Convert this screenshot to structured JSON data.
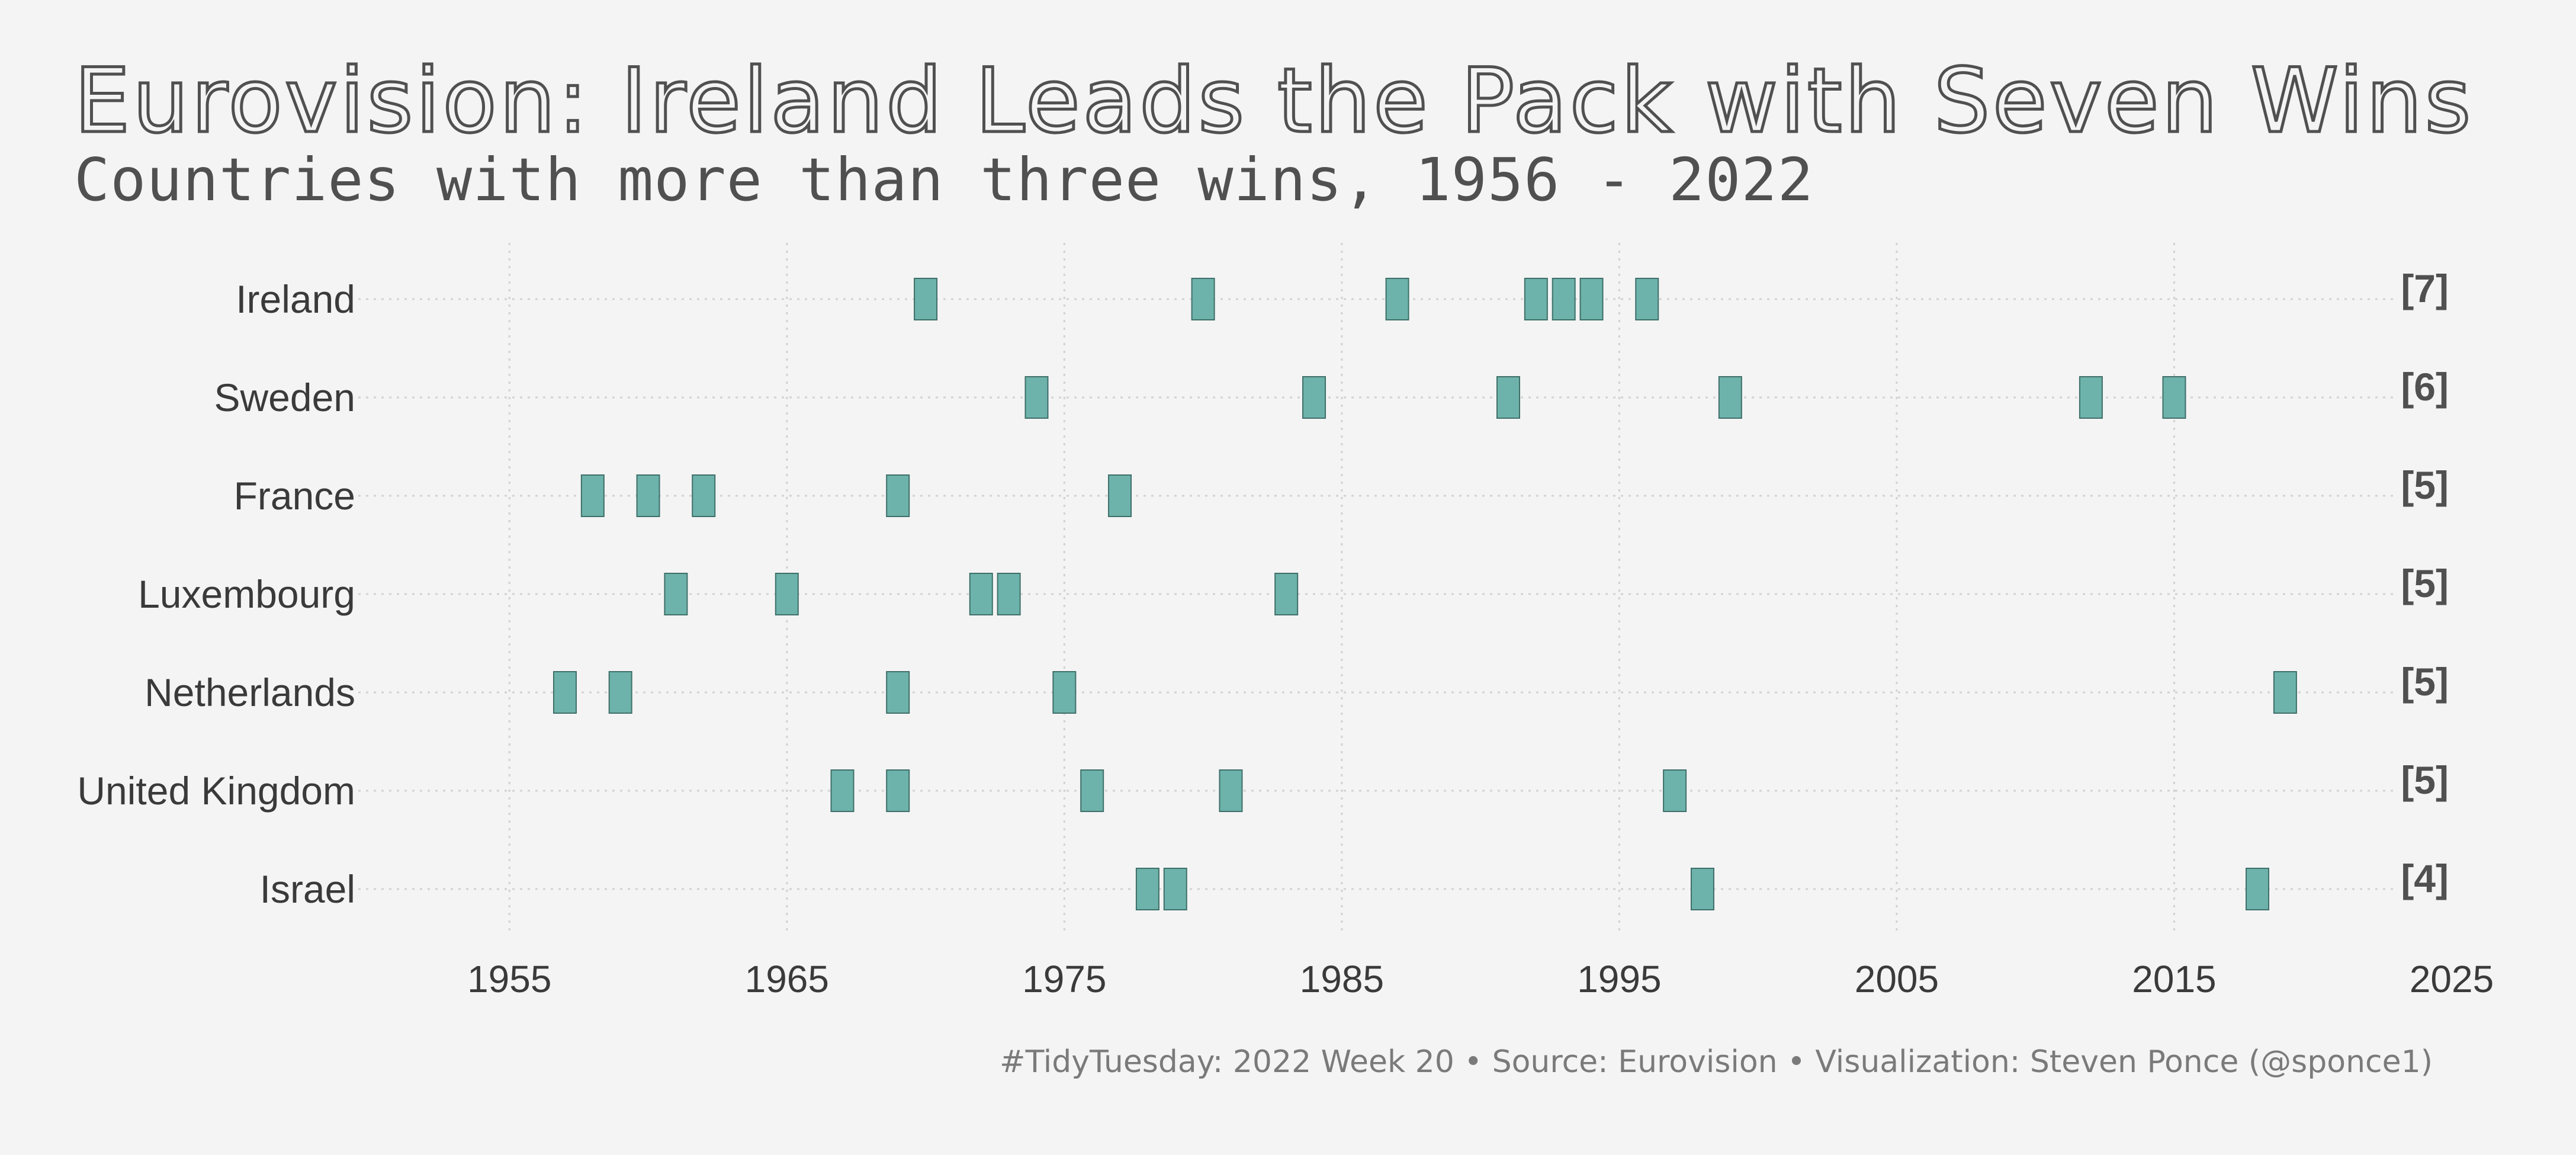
{
  "chart_data": {
    "type": "scatter",
    "title": "Eurovision: Ireland Leads the Pack with Seven Wins",
    "subtitle": "Countries with more than three wins, 1956 - 2022",
    "caption": "#TidyTuesday: 2022 Week 20 • Source: Eurovision • Visualization: Steven Ponce (@sponce1)",
    "xlabel": "",
    "ylabel": "",
    "xlim": [
      1950,
      2025
    ],
    "x_ticks": [
      1955,
      1965,
      1975,
      1985,
      1995,
      2005,
      2015,
      2025
    ],
    "grid": true,
    "marker_color": "#6db3ab",
    "series": [
      {
        "country": "Ireland",
        "count_label": "[7]",
        "years": [
          1970,
          1980,
          1987,
          1992,
          1993,
          1994,
          1996
        ]
      },
      {
        "country": "Sweden",
        "count_label": "[6]",
        "years": [
          1974,
          1984,
          1991,
          1999,
          2012,
          2015
        ]
      },
      {
        "country": "France",
        "count_label": "[5]",
        "years": [
          1958,
          1960,
          1962,
          1969,
          1977
        ]
      },
      {
        "country": "Luxembourg",
        "count_label": "[5]",
        "years": [
          1961,
          1965,
          1972,
          1973,
          1983
        ]
      },
      {
        "country": "Netherlands",
        "count_label": "[5]",
        "years": [
          1957,
          1959,
          1969,
          1975,
          2019
        ]
      },
      {
        "country": "United Kingdom",
        "count_label": "[5]",
        "years": [
          1967,
          1969,
          1976,
          1981,
          1997
        ]
      },
      {
        "country": "Israel",
        "count_label": "[4]",
        "years": [
          1978,
          1979,
          1998,
          2018
        ]
      }
    ]
  }
}
